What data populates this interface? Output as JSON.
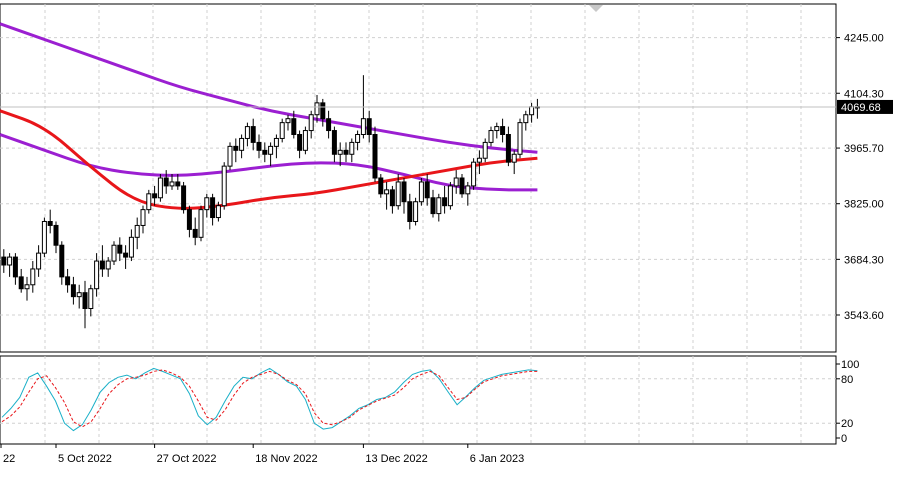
{
  "chart_data": [
    {
      "type": "candlestick",
      "title": "",
      "ylim": [
        3450,
        4330
      ],
      "y_ticks": [
        "4245.00",
        "4104.30",
        "3965.70",
        "3825.00",
        "3684.30",
        "3543.60"
      ],
      "y_tick_values": [
        4245.0,
        4104.3,
        3965.7,
        3825.0,
        3684.3,
        3543.6
      ],
      "current_price": "4069.68",
      "grid": true,
      "candle_count": 100,
      "candles": [
        [
          3700,
          3730,
          3660,
          3690
        ],
        [
          3690,
          3710,
          3650,
          3670
        ],
        [
          3670,
          3700,
          3640,
          3690
        ],
        [
          3690,
          3700,
          3620,
          3640
        ],
        [
          3640,
          3660,
          3600,
          3610
        ],
        [
          3610,
          3640,
          3580,
          3620
        ],
        [
          3620,
          3680,
          3600,
          3660
        ],
        [
          3660,
          3720,
          3640,
          3700
        ],
        [
          3700,
          3790,
          3690,
          3780
        ],
        [
          3780,
          3810,
          3750,
          3770
        ],
        [
          3770,
          3780,
          3700,
          3720
        ],
        [
          3720,
          3730,
          3620,
          3640
        ],
        [
          3640,
          3660,
          3600,
          3620
        ],
        [
          3620,
          3640,
          3570,
          3590
        ],
        [
          3590,
          3620,
          3560,
          3600
        ],
        [
          3600,
          3630,
          3510,
          3560
        ],
        [
          3560,
          3620,
          3540,
          3610
        ],
        [
          3610,
          3700,
          3590,
          3680
        ],
        [
          3680,
          3720,
          3640,
          3660
        ],
        [
          3660,
          3690,
          3640,
          3680
        ],
        [
          3680,
          3730,
          3670,
          3720
        ],
        [
          3720,
          3740,
          3680,
          3700
        ],
        [
          3700,
          3720,
          3660,
          3690
        ],
        [
          3690,
          3760,
          3680,
          3740
        ],
        [
          3740,
          3790,
          3710,
          3770
        ],
        [
          3770,
          3820,
          3750,
          3810
        ],
        [
          3810,
          3860,
          3800,
          3850
        ],
        [
          3850,
          3870,
          3820,
          3840
        ],
        [
          3840,
          3900,
          3830,
          3890
        ],
        [
          3890,
          3910,
          3850,
          3870
        ],
        [
          3870,
          3900,
          3860,
          3880
        ],
        [
          3880,
          3900,
          3860,
          3870
        ],
        [
          3870,
          3880,
          3800,
          3810
        ],
        [
          3810,
          3820,
          3740,
          3760
        ],
        [
          3760,
          3790,
          3720,
          3740
        ],
        [
          3740,
          3820,
          3730,
          3810
        ],
        [
          3810,
          3850,
          3790,
          3840
        ],
        [
          3840,
          3850,
          3770,
          3790
        ],
        [
          3790,
          3830,
          3780,
          3820
        ],
        [
          3820,
          3930,
          3810,
          3920
        ],
        [
          3920,
          3980,
          3910,
          3970
        ],
        [
          3970,
          3990,
          3930,
          3960
        ],
        [
          3960,
          4000,
          3940,
          3990
        ],
        [
          3990,
          4030,
          3970,
          4020
        ],
        [
          4020,
          4040,
          3960,
          3980
        ],
        [
          3980,
          4000,
          3940,
          3960
        ],
        [
          3960,
          3980,
          3930,
          3950
        ],
        [
          3950,
          3980,
          3920,
          3970
        ],
        [
          3970,
          4000,
          3940,
          3990
        ],
        [
          3990,
          4040,
          3980,
          4030
        ],
        [
          4030,
          4050,
          4010,
          4040
        ],
        [
          4040,
          4060,
          3990,
          4000
        ],
        [
          4000,
          4010,
          3940,
          3960
        ],
        [
          3960,
          4020,
          3950,
          4010
        ],
        [
          4010,
          4060,
          3990,
          4050
        ],
        [
          4050,
          4100,
          4030,
          4080
        ],
        [
          4080,
          4090,
          4020,
          4040
        ],
        [
          4040,
          4060,
          3990,
          4010
        ],
        [
          4010,
          4020,
          3930,
          3950
        ],
        [
          3950,
          3980,
          3920,
          3960
        ],
        [
          3960,
          3980,
          3930,
          3950
        ],
        [
          3950,
          3990,
          3930,
          3980
        ],
        [
          3980,
          4010,
          3960,
          4000
        ],
        [
          4000,
          4150,
          3990,
          4040
        ],
        [
          4040,
          4060,
          3980,
          4000
        ],
        [
          4000,
          4020,
          3880,
          3890
        ],
        [
          3890,
          3900,
          3840,
          3850
        ],
        [
          3850,
          3880,
          3810,
          3860
        ],
        [
          3860,
          3870,
          3800,
          3820
        ],
        [
          3820,
          3900,
          3810,
          3880
        ],
        [
          3880,
          3890,
          3800,
          3830
        ],
        [
          3830,
          3850,
          3760,
          3780
        ],
        [
          3780,
          3840,
          3770,
          3830
        ],
        [
          3830,
          3890,
          3820,
          3880
        ],
        [
          3880,
          3900,
          3820,
          3840
        ],
        [
          3840,
          3860,
          3790,
          3800
        ],
        [
          3800,
          3850,
          3780,
          3840
        ],
        [
          3840,
          3870,
          3800,
          3820
        ],
        [
          3820,
          3880,
          3810,
          3870
        ],
        [
          3870,
          3910,
          3850,
          3890
        ],
        [
          3890,
          3900,
          3840,
          3850
        ],
        [
          3850,
          3880,
          3820,
          3870
        ],
        [
          3870,
          3940,
          3860,
          3930
        ],
        [
          3930,
          3960,
          3900,
          3940
        ],
        [
          3940,
          3990,
          3930,
          3980
        ],
        [
          3980,
          4020,
          3970,
          4010
        ],
        [
          4010,
          4030,
          3990,
          4020
        ],
        [
          4020,
          4040,
          3980,
          4000
        ],
        [
          4000,
          4020,
          3920,
          3930
        ],
        [
          3930,
          3960,
          3900,
          3950
        ],
        [
          3950,
          4040,
          3940,
          4030
        ],
        [
          4030,
          4060,
          4010,
          4050
        ],
        [
          4050,
          4080,
          4030,
          4070
        ],
        [
          4070,
          4090,
          4040,
          4069.68
        ]
      ],
      "ma_slow_long": [
        4280,
        4240,
        4200,
        4160,
        4120,
        4090,
        4060,
        4040,
        4020,
        4000,
        3980,
        3965,
        3955
      ],
      "ma_slow_short": [
        4000,
        3960,
        3920,
        3900,
        3895,
        3905,
        3920,
        3930,
        3925,
        3900,
        3870,
        3860,
        3860
      ],
      "ma_fast": [
        4060,
        4020,
        3920,
        3830,
        3810,
        3820,
        3840,
        3850,
        3870,
        3890,
        3910,
        3930,
        3940
      ],
      "colors": {
        "candle_up": "#ffffff",
        "candle_down": "#000000",
        "ma_purple": "#9b1fd1",
        "ma_red": "#e8161a"
      }
    },
    {
      "type": "line",
      "title": "",
      "ylim": [
        0,
        100
      ],
      "y_ticks": [
        "100",
        "80",
        "20",
        "0"
      ],
      "y_tick_values": [
        100,
        80,
        20,
        0
      ],
      "series": [
        {
          "values": [
            28,
            40,
            55,
            82,
            88,
            70,
            50,
            20,
            10,
            18,
            38,
            62,
            75,
            82,
            85,
            80,
            88,
            94,
            90,
            85,
            80,
            60,
            30,
            18,
            28,
            50,
            70,
            82,
            80,
            88,
            94,
            86,
            76,
            70,
            52,
            20,
            12,
            14,
            22,
            30,
            40,
            45,
            52,
            55,
            62,
            75,
            86,
            90,
            92,
            80,
            62,
            45,
            56,
            68,
            78,
            82,
            86,
            88,
            90,
            92,
            91
          ]
        },
        {
          "values": [
            22,
            30,
            42,
            62,
            80,
            84,
            68,
            48,
            22,
            15,
            22,
            40,
            60,
            72,
            80,
            82,
            85,
            90,
            92,
            88,
            82,
            70,
            50,
            28,
            24,
            38,
            58,
            74,
            82,
            86,
            90,
            86,
            78,
            72,
            60,
            34,
            20,
            18,
            22,
            28,
            38,
            44,
            50,
            54,
            58,
            68,
            80,
            86,
            90,
            84,
            68,
            52,
            55,
            66,
            76,
            80,
            84,
            86,
            88,
            90,
            90
          ]
        }
      ],
      "colors": {
        "main": "#1ab0c8",
        "signal": "#e8161a"
      }
    }
  ],
  "x_tick_labels": [
    "22",
    "5 Oct 2022",
    "27 Oct 2022",
    "18 Nov 2022",
    "13 Dec 2022",
    "6 Jan 2023"
  ],
  "x_tick_index": [
    0,
    10,
    27,
    44,
    63,
    81
  ]
}
